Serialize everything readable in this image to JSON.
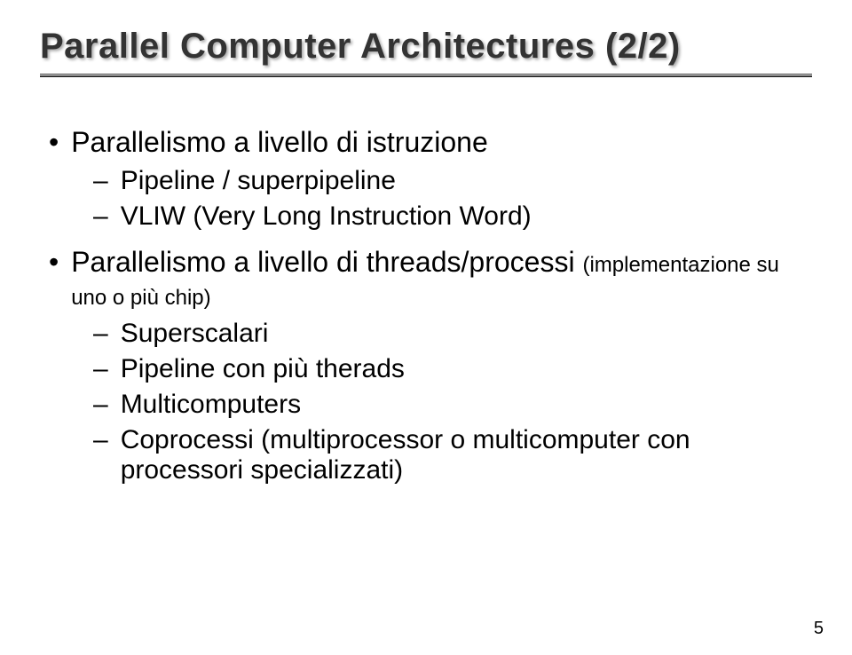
{
  "title": "Parallel Computer Architectures (2/2)",
  "bullets": {
    "b1": "Parallelismo a livello di istruzione",
    "b1s1": "Pipeline / superpipeline",
    "b1s2": "VLIW (Very Long Instruction Word)",
    "b2": "Parallelismo a livello di threads/processi",
    "b2note": "(implementazione su uno o più chip)",
    "b2s1": "Superscalari",
    "b2s2": "Pipeline con più therads",
    "b2s3": "Multicomputers",
    "b2s4": "Coprocessi (multiprocessor o multicomputer con processori specializzati)"
  },
  "page_number": "5"
}
